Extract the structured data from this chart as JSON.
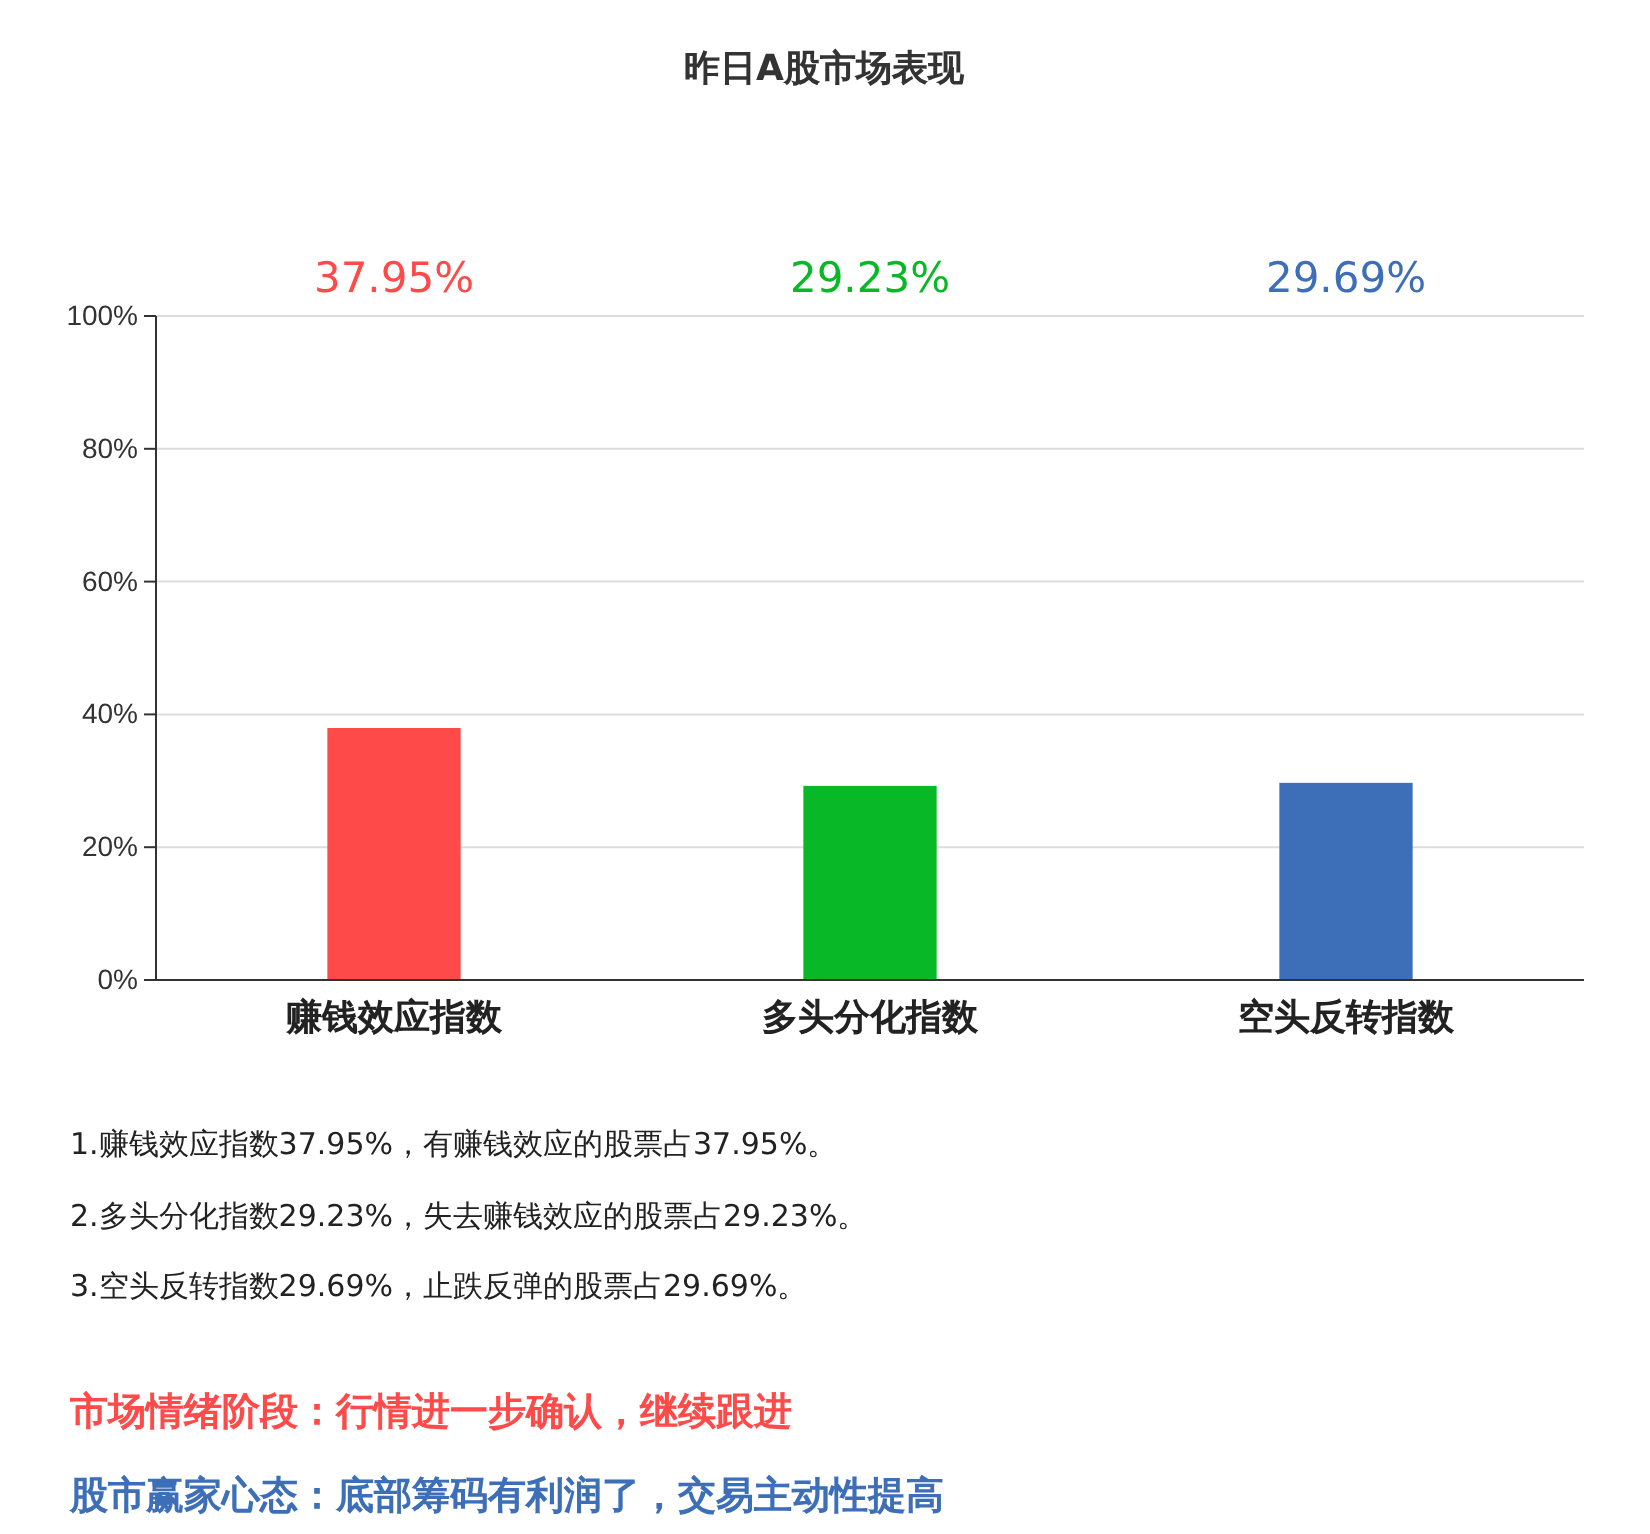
{
  "chart_data": {
    "type": "bar",
    "title": "昨日A股市场表现",
    "categories": [
      "赚钱效应指数",
      "多头分化指数",
      "空头反转指数"
    ],
    "values": [
      37.95,
      29.23,
      29.69
    ],
    "colors": [
      "#ff4a4a",
      "#08b826",
      "#3d6eb8"
    ],
    "ylim": [
      0,
      100
    ],
    "yticks": [
      {
        "value": 0,
        "label": "0%"
      },
      {
        "value": 20,
        "label": "20%"
      },
      {
        "value": 40,
        "label": "40%"
      },
      {
        "value": 60,
        "label": "60%"
      },
      {
        "value": 80,
        "label": "80%"
      },
      {
        "value": 100,
        "label": "100%"
      }
    ],
    "grid": "y",
    "annotations": [
      "37.95%",
      "29.23%",
      "29.69%",
      "1.赚钱效应指数37.95%，有赚钱效应的股票占37.95%。",
      "2.多头分化指数29.23%，失去赚钱效应的股票占29.23%。",
      "3.空头反转指数29.69%，止跌反弹的股票占29.69%。",
      "市场情绪阶段：行情进一步确认，继续跟进",
      "股市赢家心态：底部筹码有利润了，交易主动性提高"
    ]
  }
}
